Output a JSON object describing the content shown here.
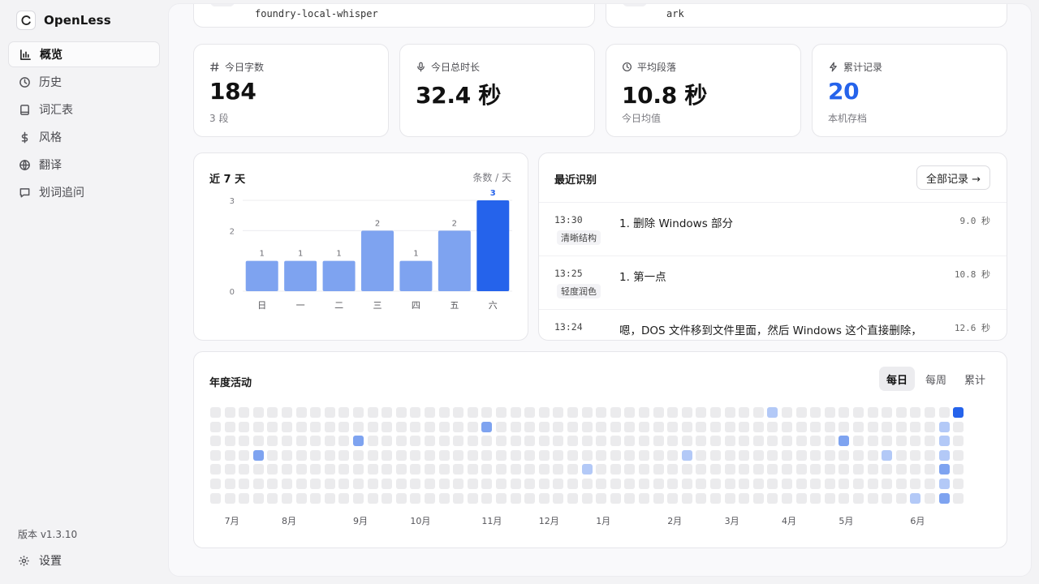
{
  "app": {
    "name": "OpenLess"
  },
  "sidebar": {
    "items": [
      {
        "label": "概览",
        "icon": "bar-chart-icon",
        "active": true
      },
      {
        "label": "历史",
        "icon": "clock-icon",
        "active": false
      },
      {
        "label": "词汇表",
        "icon": "book-icon",
        "active": false
      },
      {
        "label": "风格",
        "icon": "dollar-icon",
        "active": false
      },
      {
        "label": "翻译",
        "icon": "globe-icon",
        "active": false
      },
      {
        "label": "划词追问",
        "icon": "message-icon",
        "active": false
      }
    ],
    "version": "版本 v1.3.10",
    "settings": "设置"
  },
  "top_cards": {
    "left_value": "foundry-local-whisper",
    "right_value": "ark"
  },
  "stats": [
    {
      "label": "今日字数",
      "icon": "hash-icon",
      "value": "184",
      "sub": "3 段",
      "accent": false
    },
    {
      "label": "今日总时长",
      "icon": "mic-icon",
      "value": "32.4 秒",
      "sub": "",
      "accent": false
    },
    {
      "label": "平均段落",
      "icon": "clock-icon",
      "value": "10.8 秒",
      "sub": "今日均值",
      "accent": false
    },
    {
      "label": "累计记录",
      "icon": "bolt-icon",
      "value": "20",
      "sub": "本机存档",
      "accent": true
    }
  ],
  "chart": {
    "title": "近 7 天",
    "unit": "条数 / 天"
  },
  "chart_data": {
    "type": "bar",
    "categories": [
      "日",
      "一",
      "二",
      "三",
      "四",
      "五",
      "六"
    ],
    "values": [
      1,
      1,
      1,
      2,
      1,
      2,
      3
    ],
    "highlight_index": 6,
    "yticks": [
      0,
      2,
      3
    ],
    "ylim": [
      0,
      3
    ],
    "grid": true,
    "colors": {
      "bar": "#7ea3f0",
      "highlight": "#2563eb"
    }
  },
  "recent": {
    "title": "最近识别",
    "all_button": "全部记录 →",
    "rows": [
      {
        "time": "13:30",
        "tag": "清晰结构",
        "text": "1. 删除 Windows 部分",
        "duration": "9.0 秒"
      },
      {
        "time": "13:25",
        "tag": "轻度润色",
        "text": "1. 第一点",
        "duration": "10.8 秒"
      },
      {
        "time": "13:24",
        "tag": "",
        "text": "嗯，DOS 文件移到文件里面，然后 Windows 这个直接删除，",
        "duration": "12.6 秒"
      }
    ]
  },
  "activity": {
    "title": "年度活动",
    "tabs": [
      {
        "label": "每日",
        "active": true
      },
      {
        "label": "每周",
        "active": false
      },
      {
        "label": "累计",
        "active": false
      }
    ],
    "weeks": 53,
    "days": 7,
    "months": [
      {
        "label": "7月",
        "week": 1
      },
      {
        "label": "8月",
        "week": 5
      },
      {
        "label": "9月",
        "week": 10
      },
      {
        "label": "10月",
        "week": 14
      },
      {
        "label": "11月",
        "week": 19
      },
      {
        "label": "12月",
        "week": 23
      },
      {
        "label": "1月",
        "week": 27
      },
      {
        "label": "2月",
        "week": 32
      },
      {
        "label": "3月",
        "week": 36
      },
      {
        "label": "4月",
        "week": 40
      },
      {
        "label": "5月",
        "week": 44
      },
      {
        "label": "6月",
        "week": 49
      }
    ],
    "active_cells": [
      {
        "week": 39,
        "day": 0,
        "level": 1
      },
      {
        "week": 52,
        "day": 0,
        "level": 3
      },
      {
        "week": 19,
        "day": 1,
        "level": 2
      },
      {
        "week": 51,
        "day": 1,
        "level": 1
      },
      {
        "week": 10,
        "day": 2,
        "level": 2
      },
      {
        "week": 44,
        "day": 2,
        "level": 2
      },
      {
        "week": 51,
        "day": 2,
        "level": 1
      },
      {
        "week": 3,
        "day": 3,
        "level": 2
      },
      {
        "week": 33,
        "day": 3,
        "level": 1
      },
      {
        "week": 47,
        "day": 3,
        "level": 1
      },
      {
        "week": 51,
        "day": 3,
        "level": 1
      },
      {
        "week": 26,
        "day": 4,
        "level": 1
      },
      {
        "week": 51,
        "day": 4,
        "level": 2
      },
      {
        "week": 51,
        "day": 5,
        "level": 1
      },
      {
        "week": 49,
        "day": 6,
        "level": 1
      },
      {
        "week": 51,
        "day": 6,
        "level": 2
      }
    ],
    "level_colors": [
      "#ebebed",
      "#b3c9f7",
      "#7ea3f0",
      "#2563eb"
    ]
  }
}
